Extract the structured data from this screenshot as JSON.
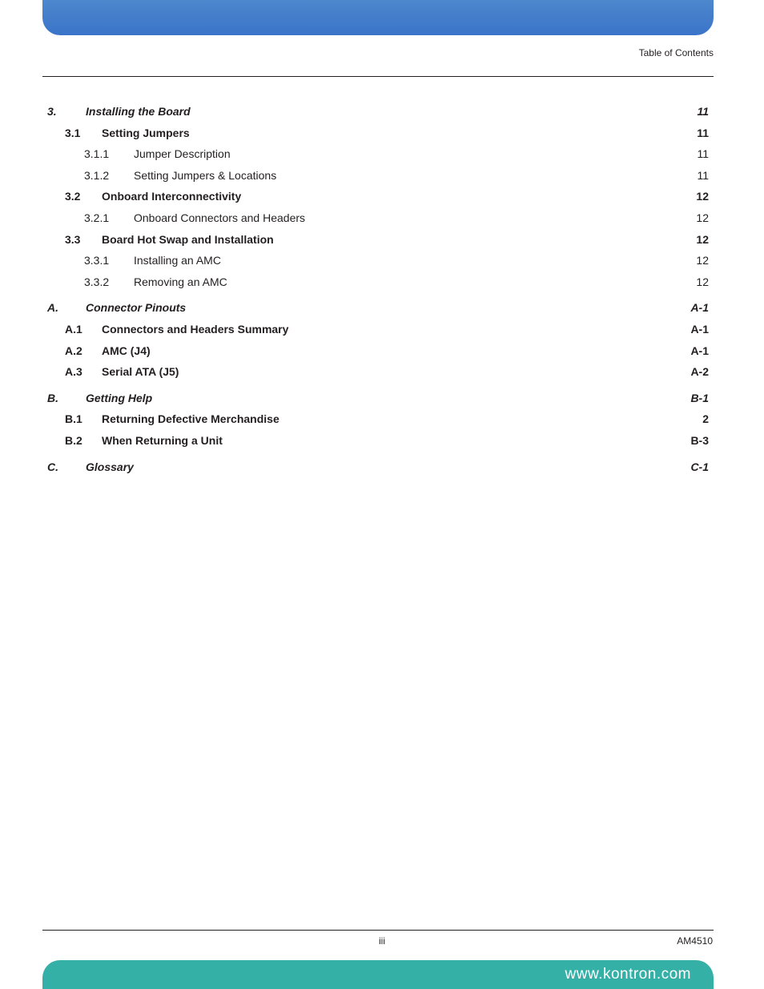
{
  "header": {
    "label": "Table of Contents"
  },
  "colors": {
    "top_bar_gradient_from": "#4d87cc",
    "top_bar_gradient_to": "#3a74c9",
    "bottom_bar": "#35b0a7",
    "text": "#231f20",
    "rule": "#231f20",
    "bottom_text": "#ffffff"
  },
  "toc": [
    {
      "level": 1,
      "num": "3.",
      "title": "Installing the Board",
      "page": "11"
    },
    {
      "level": 2,
      "num": "3.1",
      "title": "Setting Jumpers",
      "page": "11"
    },
    {
      "level": 3,
      "num": "3.1.1",
      "title": "Jumper Description",
      "page": "11"
    },
    {
      "level": 3,
      "num": "3.1.2",
      "title": "Setting Jumpers & Locations",
      "page": "11"
    },
    {
      "level": 2,
      "num": "3.2",
      "title": "Onboard Interconnectivity",
      "page": "12"
    },
    {
      "level": 3,
      "num": "3.2.1",
      "title": "Onboard Connectors and Headers",
      "page": "12"
    },
    {
      "level": 2,
      "num": "3.3",
      "title": "Board Hot Swap and Installation",
      "page": "12"
    },
    {
      "level": 3,
      "num": "3.3.1",
      "title": "Installing an AMC",
      "page": "12"
    },
    {
      "level": 3,
      "num": "3.3.2",
      "title": "Removing an AMC",
      "page": "12"
    },
    {
      "level": 1,
      "num": "A.",
      "title": "Connector Pinouts",
      "page": "A-1"
    },
    {
      "level": 2,
      "num": "A.1",
      "title": "Connectors and Headers Summary",
      "page": "A-1"
    },
    {
      "level": 2,
      "num": "A.2",
      "title": "AMC (J4)",
      "page": "A-1"
    },
    {
      "level": 2,
      "num": "A.3",
      "title": "Serial ATA (J5)",
      "page": "A-2"
    },
    {
      "level": 1,
      "num": "B.",
      "title": "Getting Help",
      "page": "B-1"
    },
    {
      "level": 2,
      "num": "B.1",
      "title": "Returning Defective Merchandise",
      "page": "2"
    },
    {
      "level": 2,
      "num": "B.2",
      "title": "When Returning a Unit",
      "page": "B-3"
    },
    {
      "level": 1,
      "num": "C.",
      "title": "Glossary",
      "page": "C-1"
    }
  ],
  "footer": {
    "center": "iii",
    "right": "AM4510",
    "bottom_url": "www.kontron.com"
  }
}
